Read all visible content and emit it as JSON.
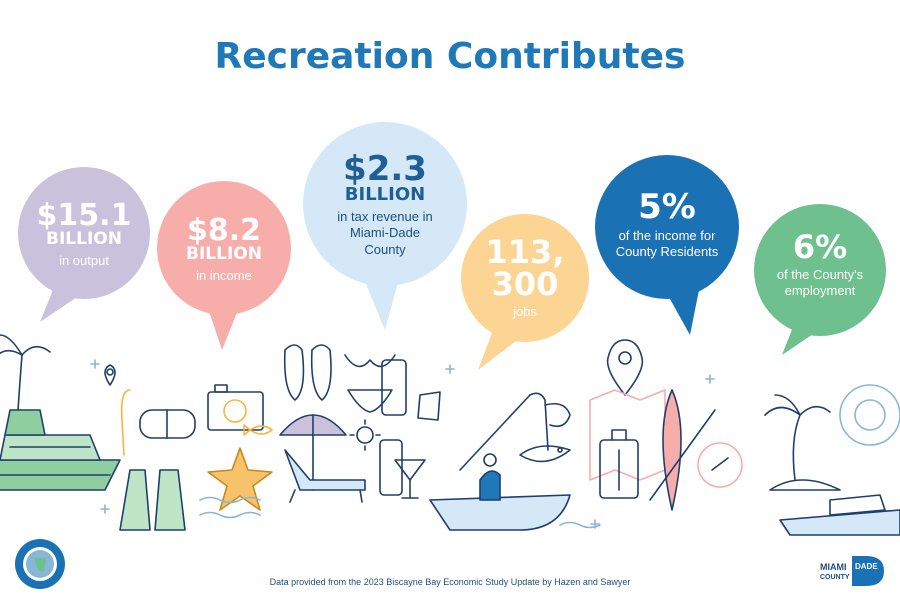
{
  "title": "Recreation Contributes",
  "colors": {
    "title": "#1f79b8",
    "output_bubble": "#c8c2dc",
    "income_bubble": "#f7aeab",
    "tax_bubble": "#d5e8f8",
    "jobs_bubble": "#fcd594",
    "residents_bubble": "#1a72b5",
    "employment_bubble": "#6ec08f",
    "line_art": "#1f3e6e"
  },
  "stats": {
    "output": {
      "value": "$15.1",
      "unit": "BILLION",
      "label": "in output"
    },
    "income": {
      "value": "$8.2",
      "unit": "BILLION",
      "label": "in income"
    },
    "tax": {
      "value": "$2.3",
      "unit": "BILLION",
      "label_line1": "in tax revenue in",
      "label_line2": "Miami-Dade",
      "label_line3": "County"
    },
    "jobs": {
      "value_line1": "113,",
      "value_line2": "300",
      "label": "jobs"
    },
    "residents": {
      "value": "5%",
      "label_line1": "of the income for",
      "label_line2": "County Residents"
    },
    "employment": {
      "value": "6%",
      "label_line1": "of the County's",
      "label_line2": "employment"
    }
  },
  "footer": {
    "source": "Data provided from the 2023 Biscayne Bay Economic Study Update by Hazen and Sawyer"
  },
  "logos": {
    "seal_text": "South Florida Water Management District",
    "miami_dade_line1": "MIAMI",
    "miami_dade_line2": "COUNTY",
    "miami_dade_word": "DADE"
  },
  "icons": [
    "cruise-ship-icon",
    "palm-tree-icon",
    "snorkel-mask-icon",
    "camera-icon",
    "starfish-icon",
    "fish-icon",
    "flip-flops-icon",
    "bikini-icon",
    "sunscreen-icon",
    "beach-umbrella-icon",
    "lounge-chair-icon",
    "cocktail-icon",
    "fishing-boat-icon",
    "fishing-rod-icon",
    "map-pin-icon",
    "map-icon",
    "luggage-icon",
    "kayak-icon",
    "island-icon",
    "yacht-icon",
    "life-ring-icon",
    "sun-icon"
  ]
}
